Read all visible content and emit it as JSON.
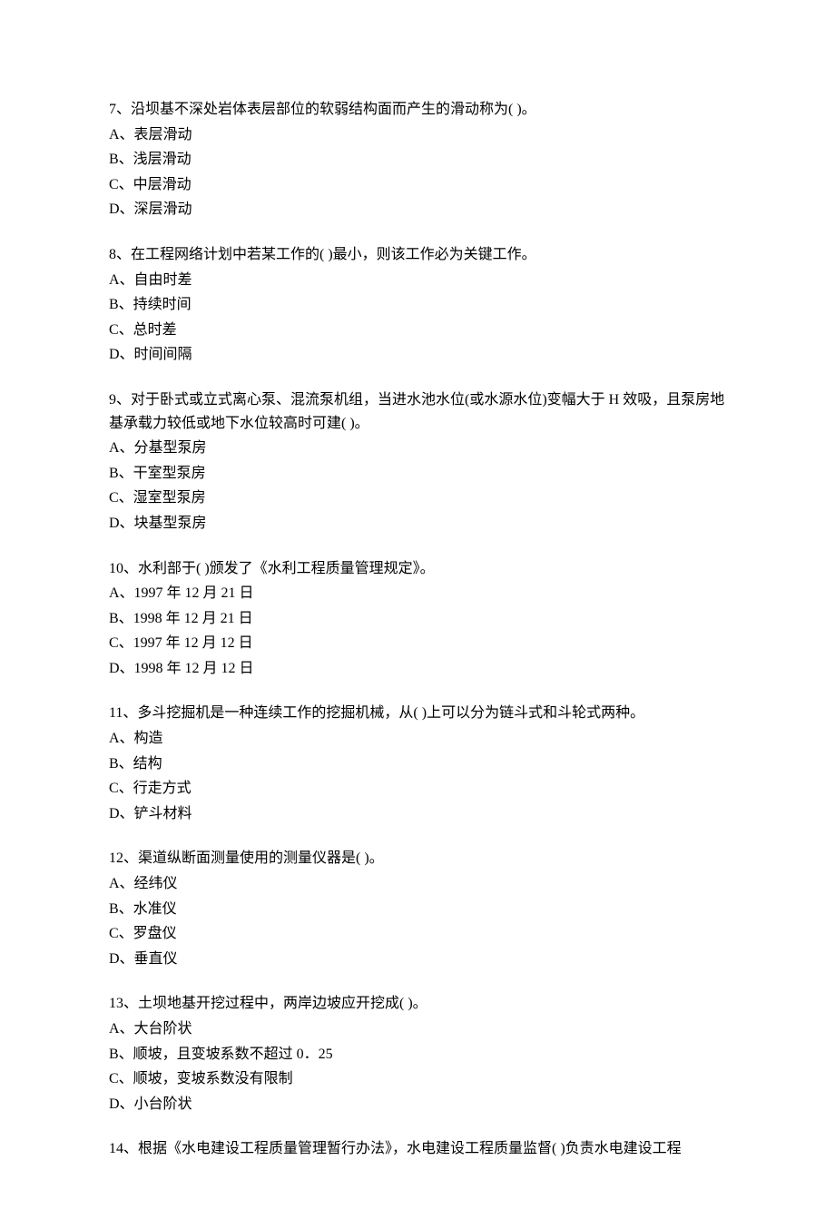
{
  "questions": [
    {
      "text": "7、沿坝基不深处岩体表层部位的软弱结构面而产生的滑动称为( )。",
      "options": [
        "A、表层滑动",
        "B、浅层滑动",
        "C、中层滑动",
        "D、深层滑动"
      ]
    },
    {
      "text": "8、在工程网络计划中若某工作的( )最小，则该工作必为关键工作。",
      "options": [
        "A、自由时差",
        "B、持续时间",
        "C、总时差",
        "D、时间间隔"
      ]
    },
    {
      "text": "9、对于卧式或立式离心泵、混流泵机组，当进水池水位(或水源水位)变幅大于 H 效吸，且泵房地基承载力较低或地下水位较高时可建( )。",
      "options": [
        "A、分基型泵房",
        "B、干室型泵房",
        "C、湿室型泵房",
        "D、块基型泵房"
      ]
    },
    {
      "text": "10、水利部于( )颁发了《水利工程质量管理规定》。",
      "options": [
        "A、1997 年 12 月 21 日",
        "B、1998 年 12 月 21 日",
        "C、1997 年 12 月 12 日",
        "D、1998 年 12 月 12 日"
      ]
    },
    {
      "text": "11、多斗挖掘机是一种连续工作的挖掘机械，从( )上可以分为链斗式和斗轮式两种。",
      "options": [
        "A、构造",
        "B、结构",
        "C、行走方式",
        "D、铲斗材料"
      ]
    },
    {
      "text": "12、渠道纵断面测量使用的测量仪器是( )。",
      "options": [
        "A、经纬仪",
        "B、水准仪",
        "C、罗盘仪",
        "D、垂直仪"
      ]
    },
    {
      "text": "13、土坝地基开挖过程中，两岸边坡应开挖成( )。",
      "options": [
        "A、大台阶状",
        "B、顺坡，且变坡系数不超过 0．25",
        "C、顺坡，变坡系数没有限制",
        "D、小台阶状"
      ]
    },
    {
      "text": "14、根据《水电建设工程质量管理暂行办法》，水电建设工程质量监督( )负责水电建设工程",
      "options": []
    }
  ]
}
